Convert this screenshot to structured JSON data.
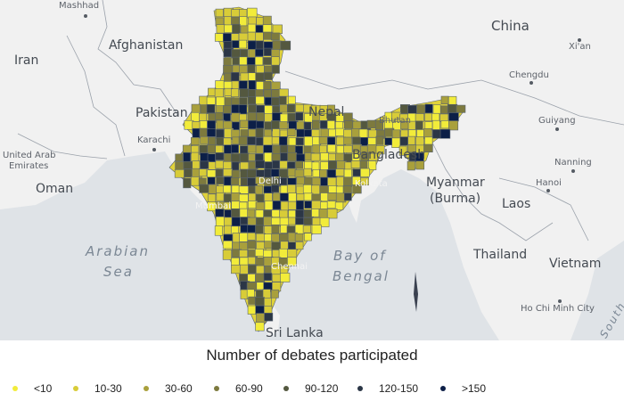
{
  "map": {
    "countries": [
      "Afghanistan",
      "Iran",
      "Pakistan",
      "Nepal",
      "China",
      "Bhutan",
      "Bangladesh",
      "Myanmar (Burma)",
      "Laos",
      "Thailand",
      "Vietnam",
      "Sri Lanka",
      "Oman",
      "United Arab Emirates"
    ],
    "cities": [
      "Mashhad",
      "Karachi",
      "Chengdu",
      "Xi'an",
      "Guiyang",
      "Nanning",
      "Hanoi",
      "Ho Chi Minh City",
      "Chennai",
      "Kolkata",
      "Mumbai",
      "Delhi"
    ],
    "seas": [
      "Arabian Sea",
      "Bay of Bengal",
      "South China Sea"
    ],
    "label_country_big_1": "Afghanistan",
    "label_iran": "Iran",
    "label_pakistan": "Pakistan",
    "label_nepal": "Nepal",
    "label_china": "China",
    "label_bhutan": "Bhutan",
    "label_bangladesh": "Bangladesh",
    "label_myanmar_1": "Myanmar",
    "label_myanmar_2": "(Burma)",
    "label_laos": "Laos",
    "label_thailand": "Thailand",
    "label_vietnam": "Vietnam",
    "label_srilanka": "Sri Lanka",
    "label_oman": "Oman",
    "label_uae_1": "United Arab",
    "label_uae_2": "Emirates",
    "label_mashhad": "Mashhad",
    "label_karachi": "Karachi",
    "label_chengdu": "Chengdu",
    "label_xian": "Xi'an",
    "label_guiyang": "Guiyang",
    "label_nanning": "Nanning",
    "label_hanoi": "Hanoi",
    "label_hcmc": "Ho Chi Minh City",
    "label_chennai": "Chennai",
    "label_kolkata": "Kolkata",
    "label_mumbai": "Mumbai",
    "label_delhi": "Delhi",
    "label_arabian_1": "Arabian",
    "label_arabian_2": "Sea",
    "label_bay_1": "Bay of",
    "label_bay_2": "Bengal",
    "label_south": "South"
  },
  "legend": {
    "title": "Number of debates participated",
    "items": [
      {
        "label": "<10",
        "color": "#f2ec3a"
      },
      {
        "label": "10-30",
        "color": "#d8cc38"
      },
      {
        "label": "30-60",
        "color": "#a9a03c"
      },
      {
        "label": "60-90",
        "color": "#7d7a3e"
      },
      {
        "label": "90-120",
        "color": "#54583f"
      },
      {
        "label": "120-150",
        "color": "#2b3646"
      },
      {
        "label": ">150",
        "color": "#0c1f47"
      }
    ]
  },
  "colors": {
    "land": "#f1f1f1",
    "water": "#dfe3e7",
    "border": "#5a6470"
  }
}
